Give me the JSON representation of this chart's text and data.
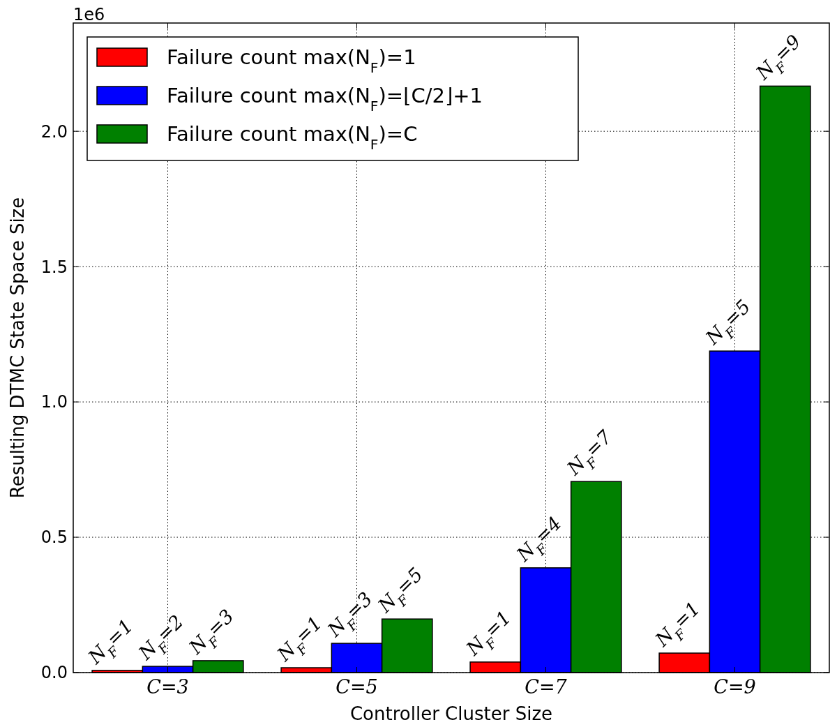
{
  "chart_data": {
    "type": "bar",
    "categories": [
      "C=3",
      "C=5",
      "C=7",
      "C=9"
    ],
    "series": [
      {
        "name": "Failure count max(N$_{F}$)=1",
        "color": "#ff0000",
        "values": [
          0.008,
          0.018,
          0.039,
          0.072
        ]
      },
      {
        "name": "Failure count max(N$_{F}$)=⌊C/2⌋+1",
        "color": "#0000ff",
        "values": [
          0.023,
          0.108,
          0.387,
          1.188
        ]
      },
      {
        "name": "Failure count max(N$_{F}$)=C",
        "color": "#008000",
        "values": [
          0.044,
          0.198,
          0.706,
          2.167
        ]
      }
    ],
    "xlabel": "Controller Cluster Size",
    "ylabel": "Resulting DTMC State Space Size",
    "ylim": [
      0,
      2.4
    ],
    "yticks": [
      {
        "value": 0,
        "label": "0.0"
      },
      0.5,
      {
        "value": 1,
        "label": "1.0"
      },
      1.5,
      {
        "value": 2,
        "label": "2.0"
      }
    ],
    "annotations": [
      "1e6",
      "N$_{F}$=1",
      "N$_{F}$=2",
      "N$_{F}$=3",
      "N$_{F}$=1",
      "N$_{F}$=3",
      "N$_{F}$=5",
      "N$_{F}$=1",
      "N$_{F}$=4",
      "N$_{F}$=7",
      "N$_{F}$=1",
      "N$_{F}$=5",
      "N$_{F}$=9"
    ],
    "grid": true,
    "legend": "top left"
  }
}
